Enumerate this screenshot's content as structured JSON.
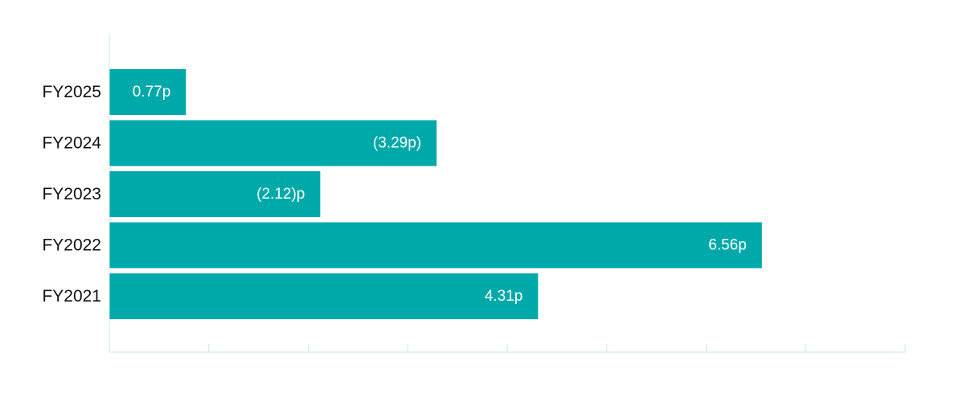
{
  "colors": {
    "bar": "#00a9a9",
    "axis": "#cde6e6",
    "label_text": "#111111",
    "value_text": "#ffffff",
    "background": "#ffffff"
  },
  "chart_data": {
    "type": "bar",
    "orientation": "horizontal",
    "title": "",
    "xlabel": "",
    "ylabel": "",
    "categories": [
      "FY2025",
      "FY2024",
      "FY2023",
      "FY2022",
      "FY2021"
    ],
    "values": [
      0.77,
      3.29,
      2.12,
      6.56,
      4.31
    ],
    "value_labels": [
      "0.77p",
      "(3.29p)",
      "(2.12)p",
      "6.56p",
      "4.31p"
    ],
    "xlim": [
      0,
      8
    ],
    "x_ticks": [
      0,
      1,
      2,
      3,
      4,
      5,
      6,
      7,
      8
    ],
    "grid": false,
    "legend": "none"
  }
}
